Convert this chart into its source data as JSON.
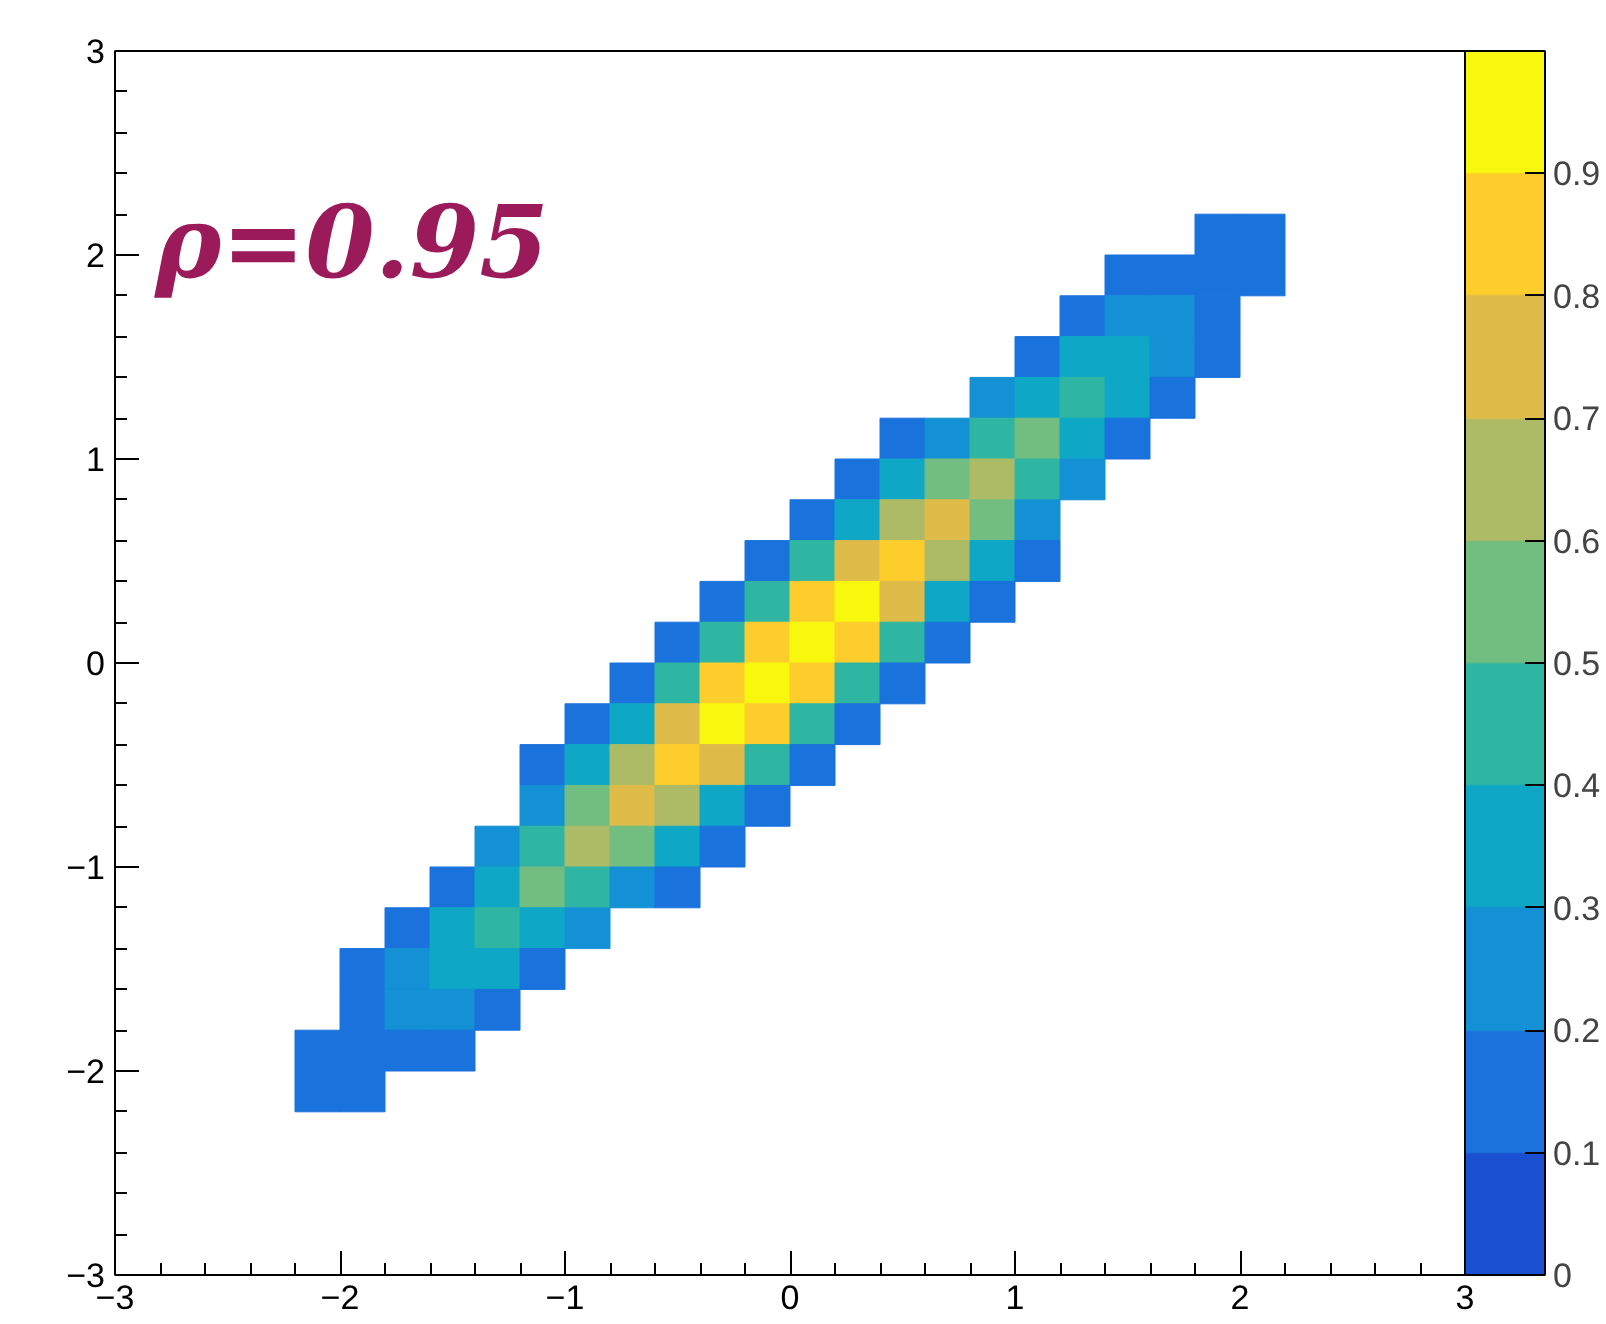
{
  "chart_data": {
    "type": "heatmap",
    "annotations": [
      "ρ=0.95"
    ],
    "x": [
      -2.1,
      -1.9,
      -1.7,
      -1.5,
      -1.3,
      -1.1,
      -0.9,
      -0.7,
      -0.5,
      -0.3,
      -0.1,
      0.1,
      0.3,
      0.5,
      0.7,
      0.9,
      1.1,
      1.3,
      1.5,
      1.7,
      1.9,
      2.1
    ],
    "y": [
      2.1,
      1.9,
      1.7,
      1.5,
      1.3,
      1.1,
      0.9,
      0.7,
      0.5,
      0.3,
      0.1,
      -0.1,
      -0.3,
      -0.5,
      -0.7,
      -0.9,
      -1.1,
      -1.3,
      -1.5,
      -1.7,
      -1.9,
      -2.1
    ],
    "cells": [
      [
        null,
        null,
        null,
        null,
        null,
        null,
        null,
        null,
        null,
        null,
        null,
        null,
        null,
        null,
        null,
        null,
        null,
        null,
        null,
        null,
        0.15,
        0.15
      ],
      [
        null,
        null,
        null,
        null,
        null,
        null,
        null,
        null,
        null,
        null,
        null,
        null,
        null,
        null,
        null,
        null,
        null,
        null,
        0.15,
        0.15,
        0.15,
        0.15
      ],
      [
        null,
        null,
        null,
        null,
        null,
        null,
        null,
        null,
        null,
        null,
        null,
        null,
        null,
        null,
        null,
        null,
        null,
        0.15,
        0.25,
        0.25,
        0.15,
        null
      ],
      [
        null,
        null,
        null,
        null,
        null,
        null,
        null,
        null,
        null,
        null,
        null,
        null,
        null,
        null,
        null,
        null,
        0.15,
        0.35,
        0.35,
        0.25,
        0.15,
        null
      ],
      [
        null,
        null,
        null,
        null,
        null,
        null,
        null,
        null,
        null,
        null,
        null,
        null,
        null,
        null,
        null,
        0.25,
        0.35,
        0.45,
        0.35,
        0.15,
        null,
        null
      ],
      [
        null,
        null,
        null,
        null,
        null,
        null,
        null,
        null,
        null,
        null,
        null,
        null,
        null,
        0.15,
        0.25,
        0.45,
        0.55,
        0.35,
        0.15,
        null,
        null,
        null
      ],
      [
        null,
        null,
        null,
        null,
        null,
        null,
        null,
        null,
        null,
        null,
        null,
        null,
        0.15,
        0.35,
        0.55,
        0.65,
        0.45,
        0.25,
        null,
        null,
        null,
        null
      ],
      [
        null,
        null,
        null,
        null,
        null,
        null,
        null,
        null,
        null,
        null,
        null,
        0.15,
        0.35,
        0.65,
        0.75,
        0.55,
        0.25,
        null,
        null,
        null,
        null,
        null
      ],
      [
        null,
        null,
        null,
        null,
        null,
        null,
        null,
        null,
        null,
        null,
        0.15,
        0.45,
        0.75,
        0.85,
        0.65,
        0.35,
        0.15,
        null,
        null,
        null,
        null,
        null
      ],
      [
        null,
        null,
        null,
        null,
        null,
        null,
        null,
        null,
        null,
        0.15,
        0.45,
        0.85,
        0.95,
        0.75,
        0.35,
        0.15,
        null,
        null,
        null,
        null,
        null,
        null
      ],
      [
        null,
        null,
        null,
        null,
        null,
        null,
        null,
        null,
        0.15,
        0.45,
        0.85,
        0.95,
        0.85,
        0.45,
        0.15,
        null,
        null,
        null,
        null,
        null,
        null,
        null
      ],
      [
        null,
        null,
        null,
        null,
        null,
        null,
        null,
        0.15,
        0.45,
        0.85,
        0.95,
        0.85,
        0.45,
        0.15,
        null,
        null,
        null,
        null,
        null,
        null,
        null,
        null
      ],
      [
        null,
        null,
        null,
        null,
        null,
        null,
        0.15,
        0.35,
        0.75,
        0.95,
        0.85,
        0.45,
        0.15,
        null,
        null,
        null,
        null,
        null,
        null,
        null,
        null,
        null
      ],
      [
        null,
        null,
        null,
        null,
        null,
        0.15,
        0.35,
        0.65,
        0.85,
        0.75,
        0.45,
        0.15,
        null,
        null,
        null,
        null,
        null,
        null,
        null,
        null,
        null,
        null
      ],
      [
        null,
        null,
        null,
        null,
        null,
        0.25,
        0.55,
        0.75,
        0.65,
        0.35,
        0.15,
        null,
        null,
        null,
        null,
        null,
        null,
        null,
        null,
        null,
        null,
        null
      ],
      [
        null,
        null,
        null,
        null,
        0.25,
        0.45,
        0.65,
        0.55,
        0.35,
        0.15,
        null,
        null,
        null,
        null,
        null,
        null,
        null,
        null,
        null,
        null,
        null,
        null
      ],
      [
        null,
        null,
        null,
        0.15,
        0.35,
        0.55,
        0.45,
        0.25,
        0.15,
        null,
        null,
        null,
        null,
        null,
        null,
        null,
        null,
        null,
        null,
        null,
        null,
        null
      ],
      [
        null,
        null,
        0.15,
        0.35,
        0.45,
        0.35,
        0.25,
        null,
        null,
        null,
        null,
        null,
        null,
        null,
        null,
        null,
        null,
        null,
        null,
        null,
        null,
        null
      ],
      [
        null,
        0.15,
        0.25,
        0.35,
        0.35,
        0.15,
        null,
        null,
        null,
        null,
        null,
        null,
        null,
        null,
        null,
        null,
        null,
        null,
        null,
        null,
        null,
        null
      ],
      [
        null,
        0.15,
        0.25,
        0.25,
        0.15,
        null,
        null,
        null,
        null,
        null,
        null,
        null,
        null,
        null,
        null,
        null,
        null,
        null,
        null,
        null,
        null,
        null
      ],
      [
        0.15,
        0.15,
        0.15,
        0.15,
        null,
        null,
        null,
        null,
        null,
        null,
        null,
        null,
        null,
        null,
        null,
        null,
        null,
        null,
        null,
        null,
        null,
        null
      ],
      [
        0.15,
        0.15,
        null,
        null,
        null,
        null,
        null,
        null,
        null,
        null,
        null,
        null,
        null,
        null,
        null,
        null,
        null,
        null,
        null,
        null,
        null,
        null
      ]
    ],
    "colors": [
      "#1a4fcf",
      "#1a72dc",
      "#1490d4",
      "#0ea8c6",
      "#2eb6a2",
      "#72bd80",
      "#adbb66",
      "#dfbb4a",
      "#fdcd2c",
      "#f8f80e"
    ],
    "clim": [
      0,
      1
    ],
    "cticks": [
      0,
      0.1,
      0.2,
      0.3,
      0.4,
      0.5,
      0.6,
      0.7,
      0.8,
      0.9
    ],
    "xlim": [
      -3,
      3
    ],
    "ylim": [
      -3,
      3
    ],
    "xticks": [
      -3,
      -2,
      -1,
      0,
      1,
      2,
      3
    ],
    "yticks": [
      -3,
      -2,
      -1,
      0,
      1,
      2,
      3
    ]
  }
}
